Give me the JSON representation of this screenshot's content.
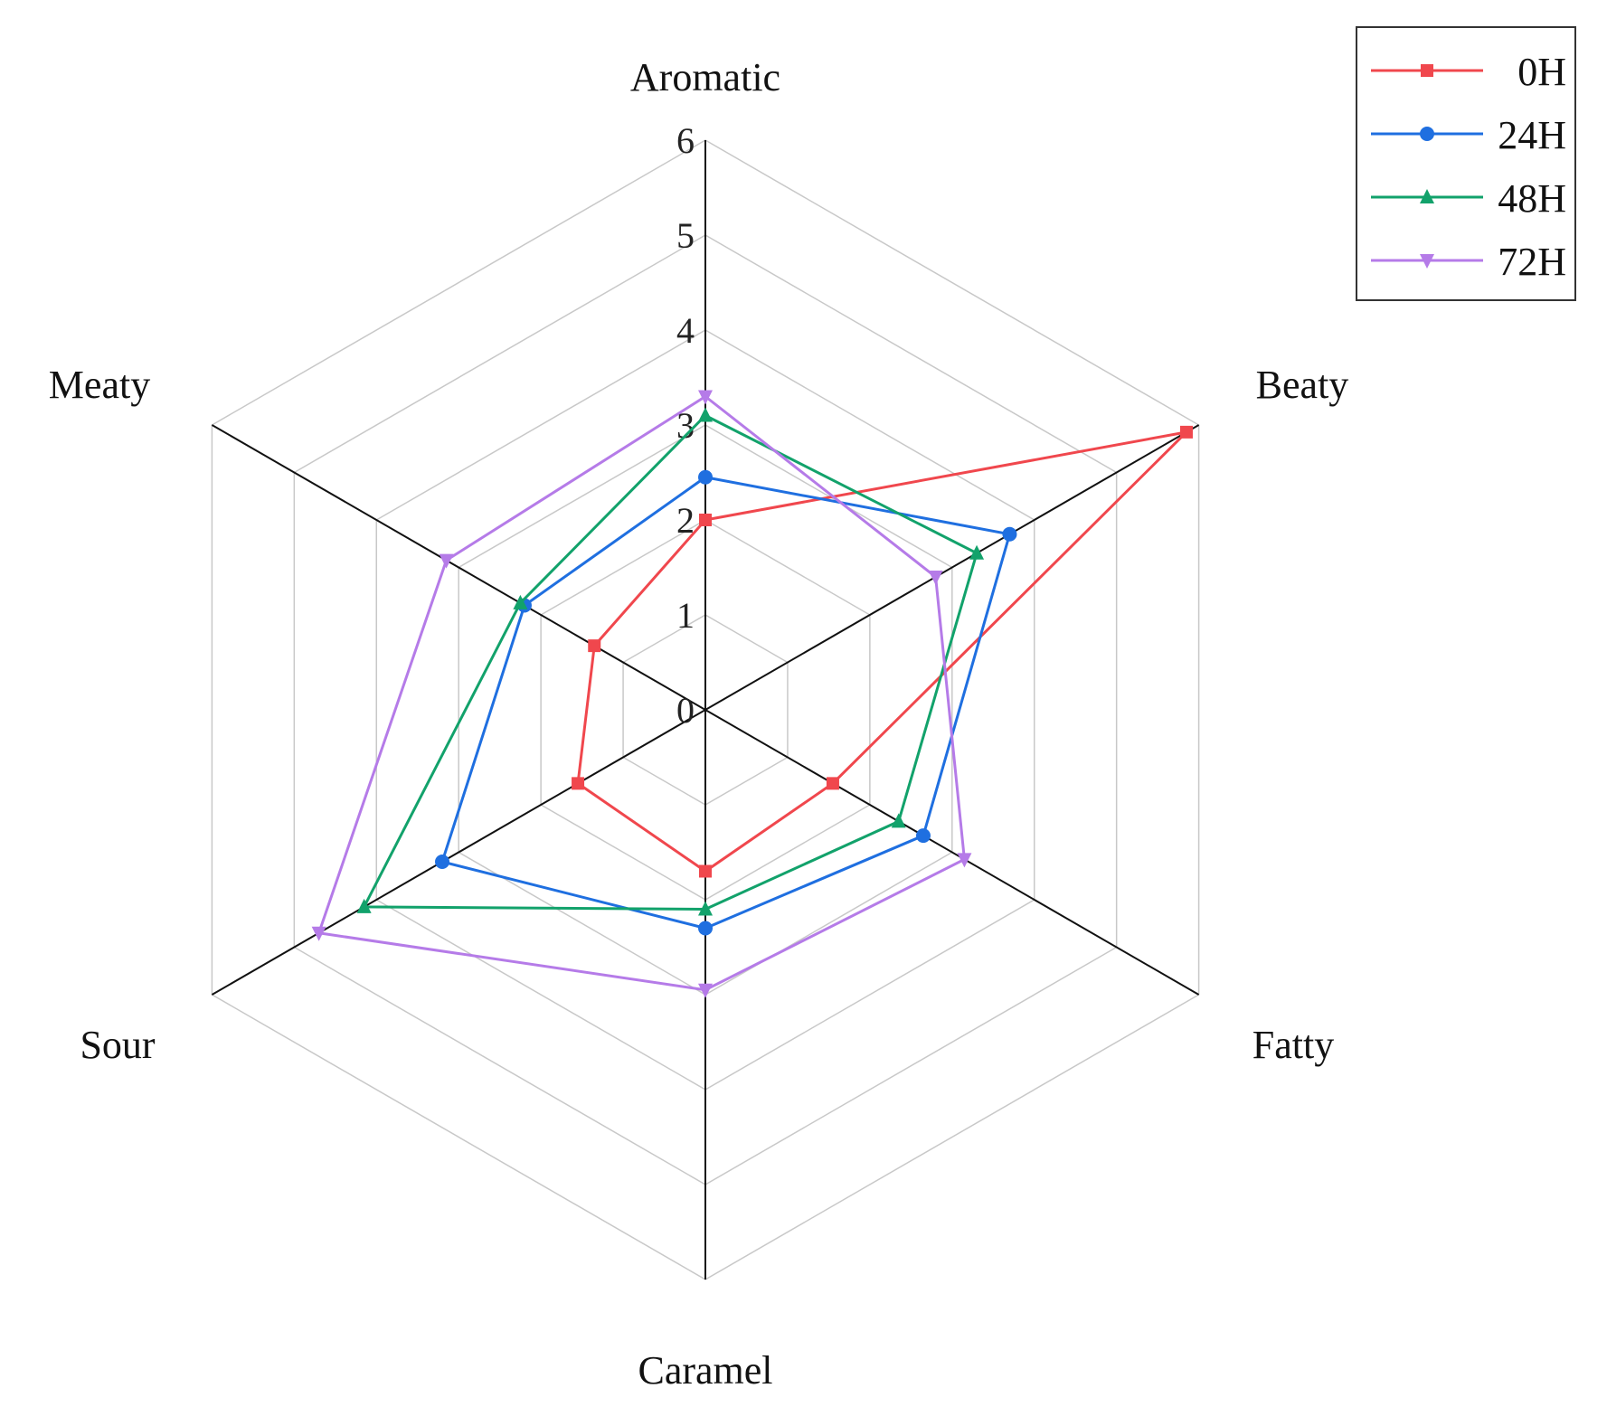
{
  "chart_data": {
    "type": "radar",
    "axes": [
      "Aromatic",
      "Beaty",
      "Fatty",
      "Caramel",
      "Sour",
      "Meaty"
    ],
    "rlim": [
      0,
      6
    ],
    "ticks": [
      "0",
      "1",
      "2",
      "3",
      "4",
      "5",
      "6"
    ],
    "grid": true,
    "legend_position": "top-right",
    "series": [
      {
        "name": "0H",
        "color": "#f0474d",
        "marker": "square",
        "values": [
          2.0,
          5.85,
          1.55,
          1.7,
          1.55,
          1.35
        ]
      },
      {
        "name": "24H",
        "color": "#1f6fe0",
        "marker": "circle",
        "values": [
          2.45,
          3.7,
          2.65,
          2.3,
          3.2,
          2.2
        ]
      },
      {
        "name": "48H",
        "color": "#12a26b",
        "marker": "triangle-up",
        "values": [
          3.1,
          3.3,
          2.35,
          2.1,
          4.15,
          2.25
        ]
      },
      {
        "name": "72H",
        "color": "#b57be8",
        "marker": "triangle-down",
        "values": [
          3.3,
          2.8,
          3.15,
          2.95,
          4.7,
          3.15
        ]
      }
    ]
  }
}
